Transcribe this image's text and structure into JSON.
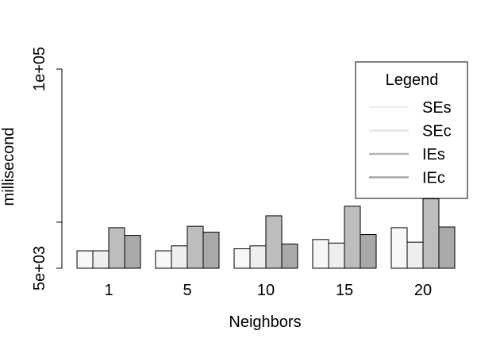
{
  "chart_data": {
    "type": "bar",
    "title": "",
    "xlabel": "Neighbors",
    "ylabel": "millisecond",
    "log_scale_y": true,
    "y_ticks": [
      {
        "value": 5000,
        "label": "5e+03"
      },
      {
        "value": 100000,
        "label": "1e+05"
      }
    ],
    "ylim": [
      5000,
      100000
    ],
    "categories": [
      "1",
      "5",
      "10",
      "15",
      "20"
    ],
    "series": [
      {
        "name": "SEs",
        "color": "#f7f7f7",
        "values": [
          6500,
          6500,
          6700,
          7700,
          9200
        ]
      },
      {
        "name": "SEc",
        "color": "#eeeeee",
        "values": [
          6500,
          7000,
          7000,
          7300,
          7400
        ]
      },
      {
        "name": "IEs",
        "color": "#bdbdbd",
        "values": [
          9200,
          9400,
          11000,
          12700,
          14200
        ]
      },
      {
        "name": "IEc",
        "color": "#a9a9a9",
        "values": [
          8200,
          8600,
          7200,
          8300,
          9300
        ]
      }
    ],
    "legend": {
      "title": "Legend",
      "position": "top-right",
      "line_colors": [
        "#eeeeee",
        "#e5e5e5",
        "#b3b3b3",
        "#a6a6a6"
      ]
    },
    "grid": false
  }
}
